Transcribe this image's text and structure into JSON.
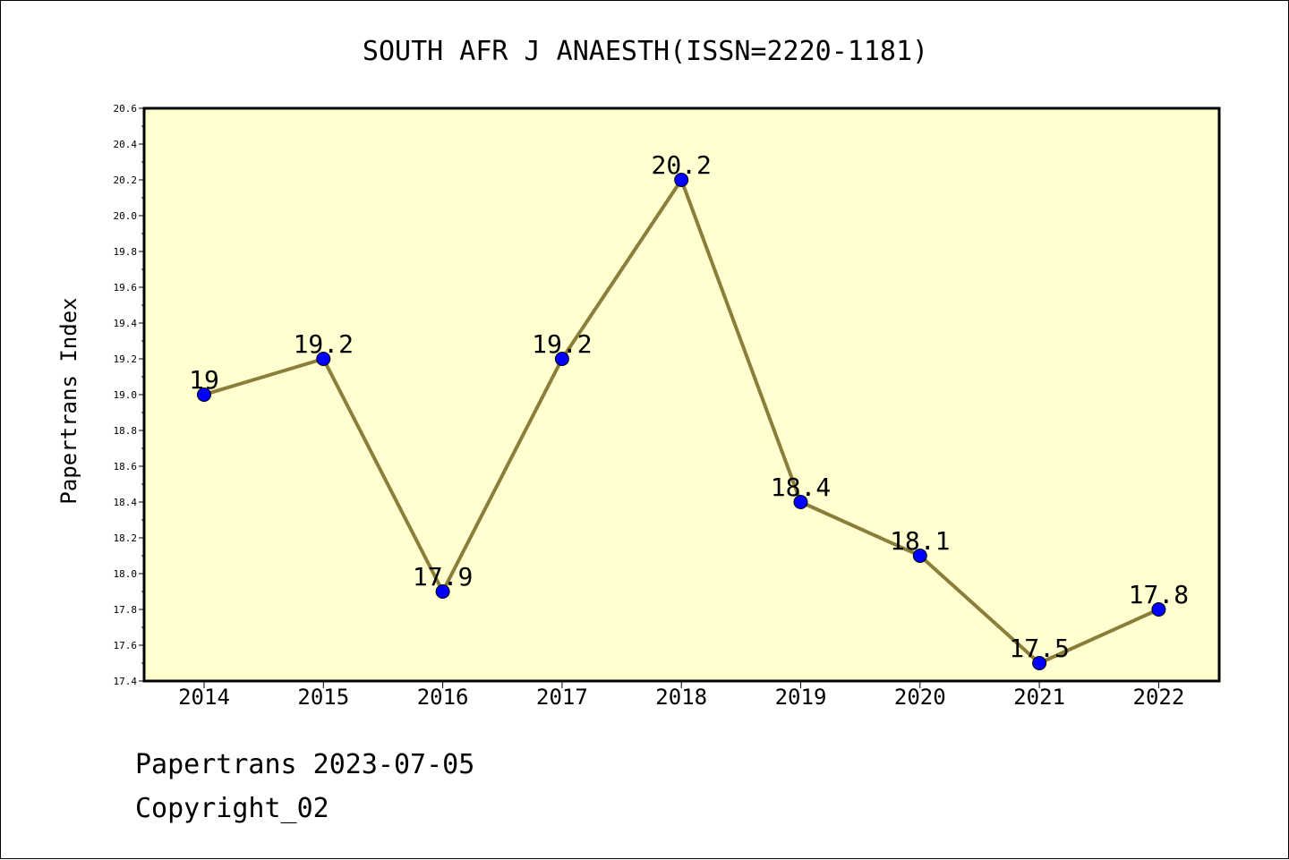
{
  "chart_data": {
    "type": "line",
    "title": "SOUTH AFR J ANAESTH(ISSN=2220-1181)",
    "ylabel": "Papertrans Index",
    "xlabel": "",
    "categories": [
      "2014",
      "2015",
      "2016",
      "2017",
      "2018",
      "2019",
      "2020",
      "2021",
      "2022"
    ],
    "values": [
      19,
      19.2,
      17.9,
      19.2,
      20.2,
      18.4,
      18.1,
      17.5,
      17.8
    ],
    "data_labels": [
      "19",
      "19.2",
      "17.9",
      "19.2",
      "20.2",
      "18.4",
      "18.1",
      "17.5",
      "17.8"
    ],
    "ylim": [
      17.4,
      20.6
    ],
    "yticks": [
      "17.4",
      "17.6",
      "17.8",
      "18.0",
      "18.2",
      "18.4",
      "18.6",
      "18.8",
      "19.0",
      "19.2",
      "19.4",
      "19.6",
      "19.8",
      "20.0",
      "20.2",
      "20.4",
      "20.6"
    ],
    "grid": false,
    "colors": {
      "plot_background": "#ffffd0",
      "line": "#8b7d3a",
      "marker": "#0000ff"
    }
  },
  "footer": {
    "date_line": "Papertrans 2023-07-05",
    "copyright": "Copyright_02"
  }
}
